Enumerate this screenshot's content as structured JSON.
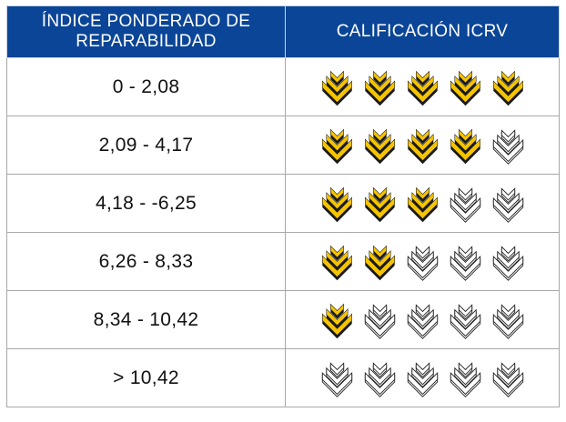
{
  "header": {
    "index_label": "ÍNDICE PONDERADO DE REPARABILIDAD",
    "rating_label": "CALIFICACIÓN ICRV"
  },
  "rows": [
    {
      "range": "0 - 2,08",
      "rating": 5,
      "max": 5
    },
    {
      "range": "2,09 - 4,17",
      "rating": 4,
      "max": 5
    },
    {
      "range": "4,18 - -6,25",
      "rating": 3,
      "max": 5
    },
    {
      "range": "6,26 - 8,33",
      "rating": 2,
      "max": 5
    },
    {
      "range": "8,34 - 10,42",
      "rating": 1,
      "max": 5
    },
    {
      "range": "> 10,42",
      "rating": 0,
      "max": 5
    }
  ],
  "colors": {
    "header_bg": "#0a4597",
    "header_text": "#ffffff",
    "icon_fill": "#f5c400",
    "icon_shadow": "#1a1a1a",
    "border": "#a8a8a8"
  },
  "icons": {
    "filled": "chevron-stack-filled-icon",
    "empty": "chevron-stack-outline-icon"
  }
}
